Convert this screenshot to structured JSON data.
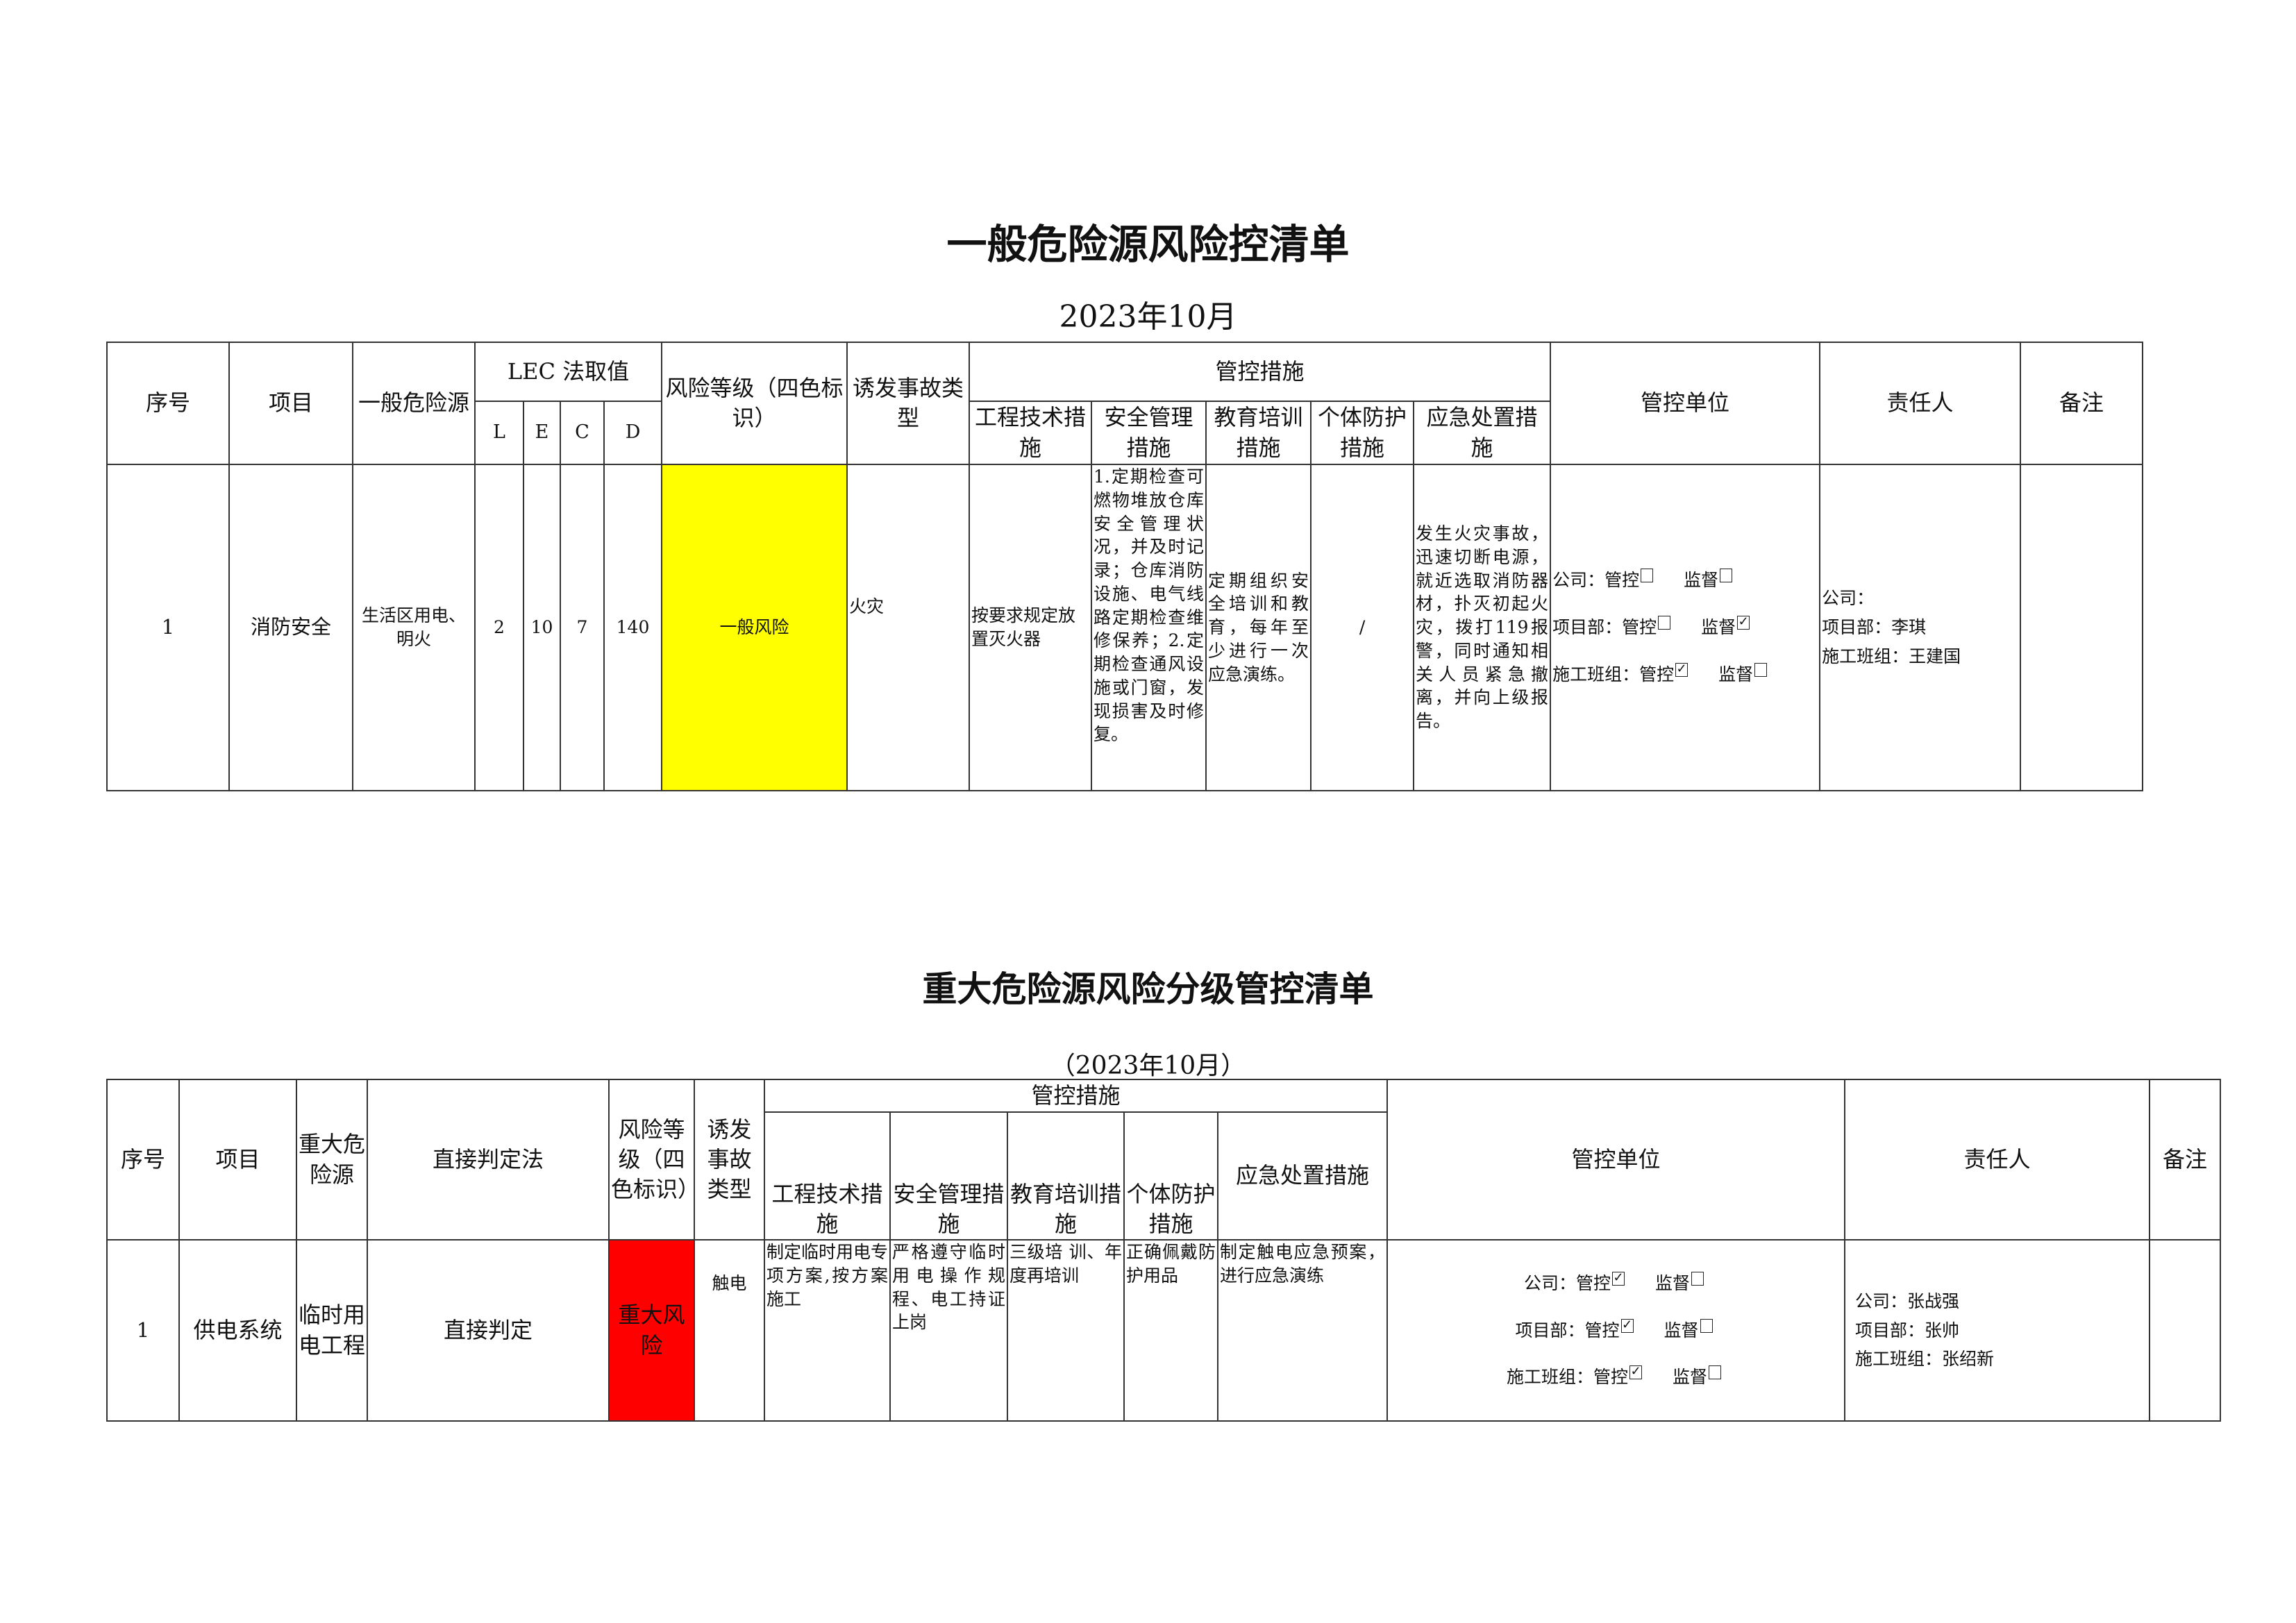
{
  "doc1": {
    "title": "一般危险源风险控清单",
    "date": "2023年10月",
    "headers": {
      "no": "序号",
      "project": "项目",
      "hazard": "一般危险源",
      "lec": "LEC 法取值",
      "L": "L",
      "E": "E",
      "C": "C",
      "D": "D",
      "level": "风险等级（四色标识）",
      "accident": "诱发事故类型",
      "measures": "管控措施",
      "eng": "工程技术措施",
      "safety": "安全管理措施",
      "edu": "教育培训措施",
      "ppe": "个体防护措施",
      "emerg": "应急处置措施",
      "unit": "管控单位",
      "person": "责任人",
      "remark": "备注"
    },
    "row": {
      "no": "1",
      "project": "消防安全",
      "hazard": "生活区用电、明火",
      "L": "2",
      "E": "10",
      "C": "7",
      "D": "140",
      "level": "一般风险",
      "level_color": "#ffff00",
      "accident": "火灾",
      "eng": "按要求规定放置灭火器",
      "safety": "1.定期检查可燃物堆放仓库安全管理状况，并及时记录；仓库消防设施、电气线路定期检查维修保养；2.定期检查通风设施或门窗，发现损害及时修复。",
      "edu": "定期组织安全培训和教育，每年至少进行一次应急演练。",
      "ppe": "/",
      "emerg": "发生火灾事故，迅速切断电源，就近选取消防器材，扑灭初起火灾，拨打119报警，同时通知相关人员紧急撤离，并向上级报告。",
      "unit": [
        {
          "label": "公司：",
          "control": "管控",
          "control_checked": false,
          "supervise": "监督",
          "supervise_checked": false
        },
        {
          "label": "项目部：",
          "control": "管控",
          "control_checked": false,
          "supervise": "监督",
          "supervise_checked": true
        },
        {
          "label": "施工班组：",
          "control": "管控",
          "control_checked": true,
          "supervise": "监督",
          "supervise_checked": false
        }
      ],
      "person": [
        "公司：",
        "项目部：李琪",
        "施工班组：王建国"
      ],
      "remark": ""
    }
  },
  "doc2": {
    "title": "重大危险源风险分级管控清单",
    "date": "（2023年10月）",
    "headers": {
      "no": "序号",
      "project": "项目",
      "hazard": "重大危险源",
      "method": "直接判定法",
      "level": "风险等级（四色标识）",
      "accident": "诱发事故类型",
      "measures": "管控措施",
      "eng": "工程技术措施",
      "safety": "安全管理措施",
      "edu": "教育培训措施",
      "ppe": "个体防护措施",
      "emerg": "应急处置措施",
      "unit": "管控单位",
      "person": "责任人",
      "remark": "备注"
    },
    "row": {
      "no": "1",
      "project": "供电系统",
      "hazard": "临时用电工程",
      "method": "直接判定",
      "level": "重大风险",
      "level_color": "#ff0000",
      "accident": "触电",
      "eng": "制定临时用电专项方案,按方案施工",
      "safety": "严格遵守临时用电操作规 程、电工持证上岗",
      "edu": "三级培 训、年度再培训",
      "ppe": "正确佩戴防护用品",
      "emerg": "制定触电应急预案，进行应急演练",
      "unit": [
        {
          "label": "公司：",
          "control": "管控",
          "control_checked": true,
          "supervise": "监督",
          "supervise_checked": false
        },
        {
          "label": "项目部：",
          "control": "管控",
          "control_checked": true,
          "supervise": "监督",
          "supervise_checked": false
        },
        {
          "label": "施工班组：",
          "control": "管控",
          "control_checked": true,
          "supervise": "监督",
          "supervise_checked": false
        }
      ],
      "person": [
        "公司：张战强",
        "项目部：张帅",
        "施工班组：张绍新"
      ],
      "remark": ""
    }
  }
}
